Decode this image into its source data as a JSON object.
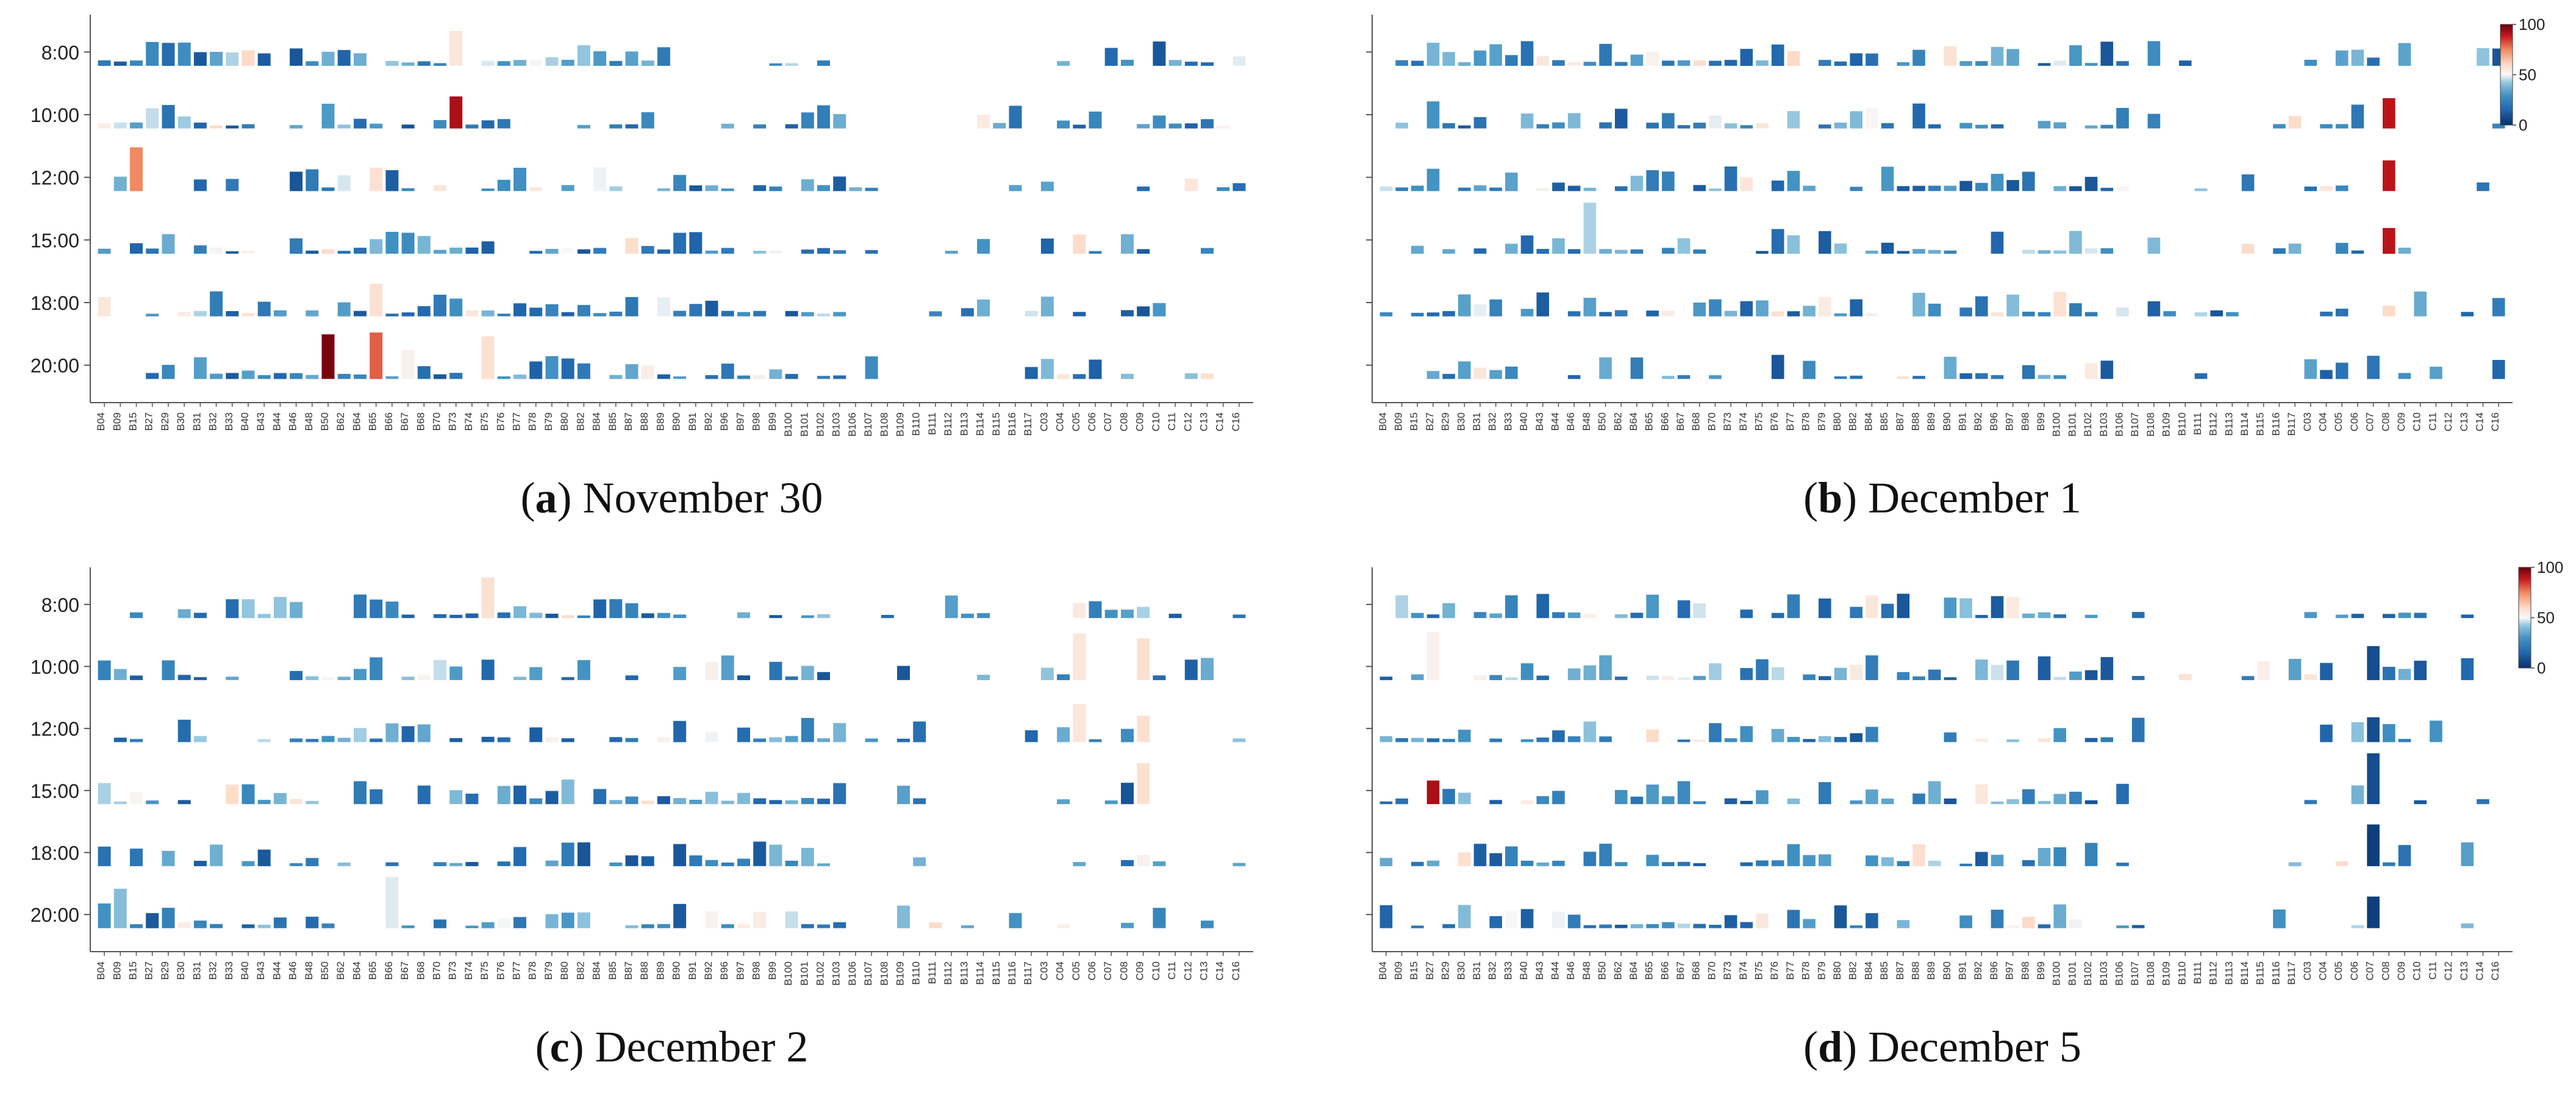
{
  "figure": {
    "panels": [
      {
        "letter": "a",
        "caption": "November 30"
      },
      {
        "letter": "b",
        "caption": "December 1"
      },
      {
        "letter": "c",
        "caption": "December 2"
      },
      {
        "letter": "d",
        "caption": "December 5"
      }
    ]
  },
  "chart_data": [
    {
      "type": "heatmap",
      "panel": "a",
      "caption": "November 30",
      "y_categories": [
        "8:00",
        "10:00",
        "12:00",
        "15:00",
        "18:00",
        "20:00"
      ],
      "x_categories": [
        "B04",
        "B09",
        "B15",
        "B27",
        "B29",
        "B30",
        "B31",
        "B32",
        "B33",
        "B40",
        "B43",
        "B44",
        "B46",
        "B48",
        "B50",
        "B62",
        "B64",
        "B65",
        "B66",
        "B67",
        "B68",
        "B70",
        "B73",
        "B74",
        "B75",
        "B76",
        "B77",
        "B78",
        "B79",
        "B80",
        "B82",
        "B84",
        "B85",
        "B87",
        "B88",
        "B89",
        "B90",
        "B91",
        "B92",
        "B96",
        "B97",
        "B98",
        "B99",
        "B100",
        "B101",
        "B102",
        "B103",
        "B106",
        "B107",
        "B108",
        "B109",
        "B110",
        "B111",
        "B112",
        "B113",
        "B114",
        "B115",
        "B116",
        "B117",
        "C03",
        "C04",
        "C05",
        "C06",
        "C07",
        "C08",
        "C09",
        "C10",
        "C11",
        "C12",
        "C13",
        "C14",
        "C16"
      ],
      "color_scale": {
        "min": 0,
        "mid": 50,
        "max": 100,
        "colors": [
          "#08306b",
          "#f7f7f7",
          "#67000d"
        ]
      },
      "colorbar_shown": false
    },
    {
      "type": "heatmap",
      "panel": "b",
      "caption": "December 1",
      "y_categories": [
        "8:00",
        "10:00",
        "12:00",
        "15:00",
        "18:00",
        "20:00"
      ],
      "y_tick_labels_shown": false,
      "x_categories": [
        "B04",
        "B09",
        "B15",
        "B27",
        "B29",
        "B30",
        "B31",
        "B32",
        "B33",
        "B40",
        "B43",
        "B44",
        "B46",
        "B48",
        "B50",
        "B62",
        "B64",
        "B65",
        "B66",
        "B67",
        "B68",
        "B70",
        "B73",
        "B74",
        "B75",
        "B76",
        "B77",
        "B78",
        "B79",
        "B80",
        "B82",
        "B84",
        "B85",
        "B87",
        "B88",
        "B89",
        "B90",
        "B91",
        "B92",
        "B96",
        "B97",
        "B98",
        "B99",
        "B100",
        "B101",
        "B102",
        "B103",
        "B106",
        "B107",
        "B108",
        "B109",
        "B110",
        "B111",
        "B112",
        "B113",
        "B114",
        "B115",
        "B116",
        "B117",
        "C03",
        "C04",
        "C05",
        "C06",
        "C07",
        "C08",
        "C09",
        "C10",
        "C11",
        "C12",
        "C13",
        "C14",
        "C16"
      ],
      "color_scale": {
        "min": 0,
        "mid": 50,
        "max": 100,
        "colors": [
          "#08306b",
          "#f7f7f7",
          "#67000d"
        ]
      },
      "colorbar_shown": true,
      "colorbar_ticks": [
        "100",
        "50",
        "0"
      ]
    },
    {
      "type": "heatmap",
      "panel": "c",
      "caption": "December 2",
      "y_categories": [
        "8:00",
        "10:00",
        "12:00",
        "15:00",
        "18:00",
        "20:00"
      ],
      "x_categories": [
        "B04",
        "B09",
        "B15",
        "B27",
        "B29",
        "B30",
        "B31",
        "B32",
        "B33",
        "B40",
        "B43",
        "B44",
        "B46",
        "B48",
        "B50",
        "B62",
        "B64",
        "B65",
        "B66",
        "B67",
        "B68",
        "B70",
        "B73",
        "B74",
        "B75",
        "B76",
        "B77",
        "B78",
        "B79",
        "B80",
        "B82",
        "B84",
        "B85",
        "B87",
        "B88",
        "B89",
        "B90",
        "B91",
        "B92",
        "B96",
        "B97",
        "B98",
        "B99",
        "B100",
        "B101",
        "B102",
        "B103",
        "B106",
        "B107",
        "B108",
        "B109",
        "B110",
        "B111",
        "B112",
        "B113",
        "B114",
        "B115",
        "B116",
        "B117",
        "C03",
        "C04",
        "C05",
        "C06",
        "C07",
        "C08",
        "C09",
        "C10",
        "C11",
        "C12",
        "C13",
        "C14",
        "C16"
      ],
      "color_scale": {
        "min": 0,
        "mid": 50,
        "max": 100,
        "colors": [
          "#08306b",
          "#f7f7f7",
          "#67000d"
        ]
      },
      "colorbar_shown": false
    },
    {
      "type": "heatmap",
      "panel": "d",
      "caption": "December 5",
      "y_categories": [
        "8:00",
        "10:00",
        "12:00",
        "15:00",
        "18:00",
        "20:00"
      ],
      "y_tick_labels_shown": false,
      "x_categories": [
        "B04",
        "B09",
        "B15",
        "B27",
        "B29",
        "B30",
        "B31",
        "B32",
        "B33",
        "B40",
        "B43",
        "B44",
        "B46",
        "B48",
        "B50",
        "B62",
        "B64",
        "B65",
        "B66",
        "B67",
        "B68",
        "B70",
        "B73",
        "B74",
        "B75",
        "B76",
        "B77",
        "B78",
        "B79",
        "B80",
        "B82",
        "B84",
        "B85",
        "B87",
        "B88",
        "B89",
        "B90",
        "B91",
        "B92",
        "B96",
        "B97",
        "B98",
        "B99",
        "B100",
        "B101",
        "B102",
        "B103",
        "B106",
        "B107",
        "B108",
        "B109",
        "B110",
        "B111",
        "B112",
        "B113",
        "B114",
        "B115",
        "B116",
        "B117",
        "C03",
        "C04",
        "C05",
        "C06",
        "C07",
        "C08",
        "C09",
        "C10",
        "C11",
        "C12",
        "C13",
        "C14",
        "C16"
      ],
      "color_scale": {
        "min": 0,
        "mid": 50,
        "max": 100,
        "colors": [
          "#08306b",
          "#f7f7f7",
          "#67000d"
        ]
      },
      "colorbar_shown": true,
      "colorbar_ticks": [
        "100",
        "50",
        "0"
      ]
    }
  ]
}
